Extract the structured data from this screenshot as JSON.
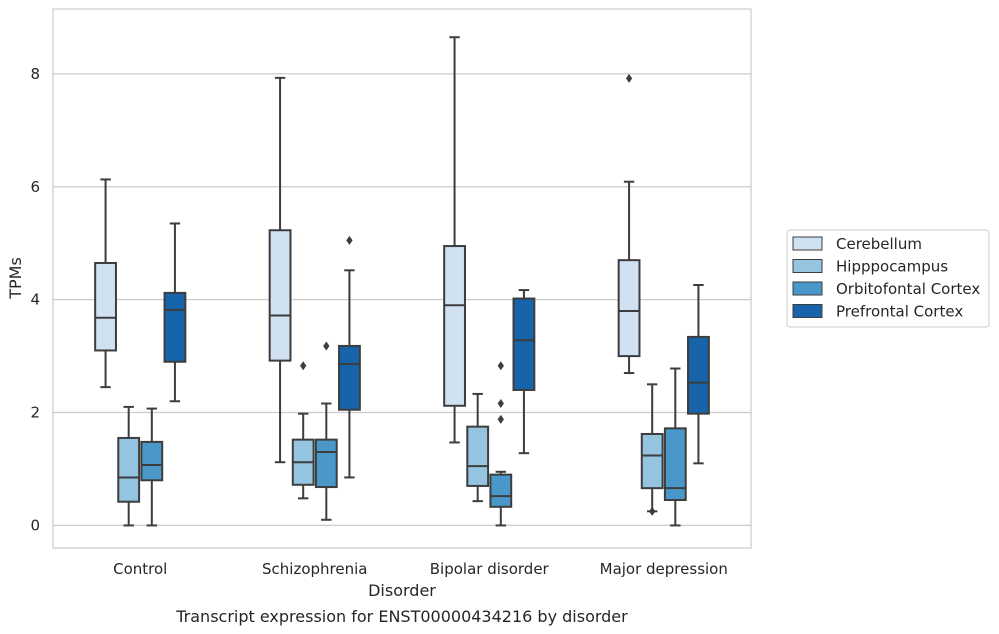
{
  "chart_data": {
    "type": "box",
    "title": "Transcript expression for ENST00000434216 by disorder",
    "xlabel": "Disorder",
    "ylabel": "TPMs",
    "ylim": [
      -0.4,
      9.15
    ],
    "yticks": [
      0,
      2,
      4,
      6,
      8
    ],
    "grid": "horizontal",
    "legend_position": "right",
    "categories": [
      "Control",
      "Schizophrenia",
      "Bipolar disorder",
      "Major depression"
    ],
    "series": [
      {
        "name": "Cerebellum",
        "color": "#d0e1f2",
        "boxes": [
          {
            "min": 2.45,
            "q1": 3.1,
            "median": 3.68,
            "q3": 4.65,
            "max": 6.13,
            "outliers": []
          },
          {
            "min": 1.12,
            "q1": 2.92,
            "median": 3.72,
            "q3": 5.23,
            "max": 7.93,
            "outliers": []
          },
          {
            "min": 1.47,
            "q1": 2.12,
            "median": 3.9,
            "q3": 4.95,
            "max": 8.65,
            "outliers": []
          },
          {
            "min": 2.7,
            "q1": 3.0,
            "median": 3.8,
            "q3": 4.7,
            "max": 6.09,
            "outliers": [
              7.92
            ]
          }
        ]
      },
      {
        "name": "Hipppocampus",
        "color": "#94c4df",
        "boxes": [
          {
            "min": 0.0,
            "q1": 0.42,
            "median": 0.85,
            "q3": 1.55,
            "max": 2.1,
            "outliers": []
          },
          {
            "min": 0.48,
            "q1": 0.72,
            "median": 1.12,
            "q3": 1.52,
            "max": 1.98,
            "outliers": [
              2.83
            ]
          },
          {
            "min": 0.43,
            "q1": 0.7,
            "median": 1.05,
            "q3": 1.75,
            "max": 2.33,
            "outliers": []
          },
          {
            "min": 0.25,
            "q1": 0.66,
            "median": 1.24,
            "q3": 1.62,
            "max": 2.5,
            "outliers": [
              0.25
            ]
          }
        ]
      },
      {
        "name": "Orbitofontal Cortex",
        "color": "#4a98c9",
        "boxes": [
          {
            "min": 0.0,
            "q1": 0.8,
            "median": 1.07,
            "q3": 1.48,
            "max": 2.07,
            "outliers": []
          },
          {
            "min": 0.1,
            "q1": 0.68,
            "median": 1.3,
            "q3": 1.52,
            "max": 2.16,
            "outliers": [
              3.18
            ]
          },
          {
            "min": 0.0,
            "q1": 0.33,
            "median": 0.52,
            "q3": 0.9,
            "max": 0.95,
            "outliers": [
              1.88,
              2.16,
              2.83
            ]
          },
          {
            "min": 0.0,
            "q1": 0.45,
            "median": 0.66,
            "q3": 1.72,
            "max": 2.78,
            "outliers": []
          }
        ]
      },
      {
        "name": "Prefrontal Cortex",
        "color": "#1764ab",
        "boxes": [
          {
            "min": 2.2,
            "q1": 2.9,
            "median": 3.82,
            "q3": 4.12,
            "max": 5.35,
            "outliers": []
          },
          {
            "min": 0.85,
            "q1": 2.05,
            "median": 2.86,
            "q3": 3.18,
            "max": 4.52,
            "outliers": [
              5.05
            ]
          },
          {
            "min": 1.28,
            "q1": 2.4,
            "median": 3.28,
            "q3": 4.02,
            "max": 4.17,
            "outliers": []
          },
          {
            "min": 1.1,
            "q1": 1.98,
            "median": 2.53,
            "q3": 3.34,
            "max": 4.26,
            "outliers": []
          }
        ]
      }
    ]
  }
}
